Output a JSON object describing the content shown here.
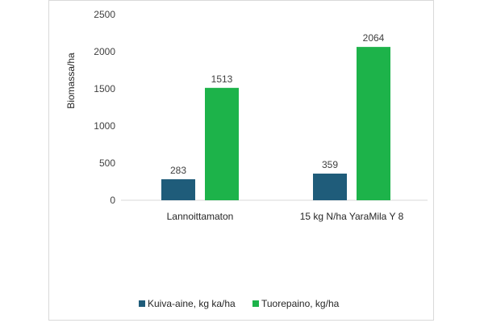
{
  "chart_data": {
    "type": "bar",
    "categories": [
      "Lannoittamaton",
      "15 kg N/ha YaraMila Y 8"
    ],
    "series": [
      {
        "name": "Kuiva-aine, kg ka/ha",
        "values": [
          283,
          359
        ],
        "color": "#1f5c7a"
      },
      {
        "name": "Tuorepaino, kg/ha",
        "values": [
          1513,
          2064
        ],
        "color": "#1db34a"
      }
    ],
    "ylabel": "Biomassa/ha",
    "ylim": [
      0,
      2500
    ],
    "yticks": [
      0,
      500,
      1000,
      1500,
      2000,
      2500
    ],
    "grid": false,
    "legend": "bottom"
  }
}
